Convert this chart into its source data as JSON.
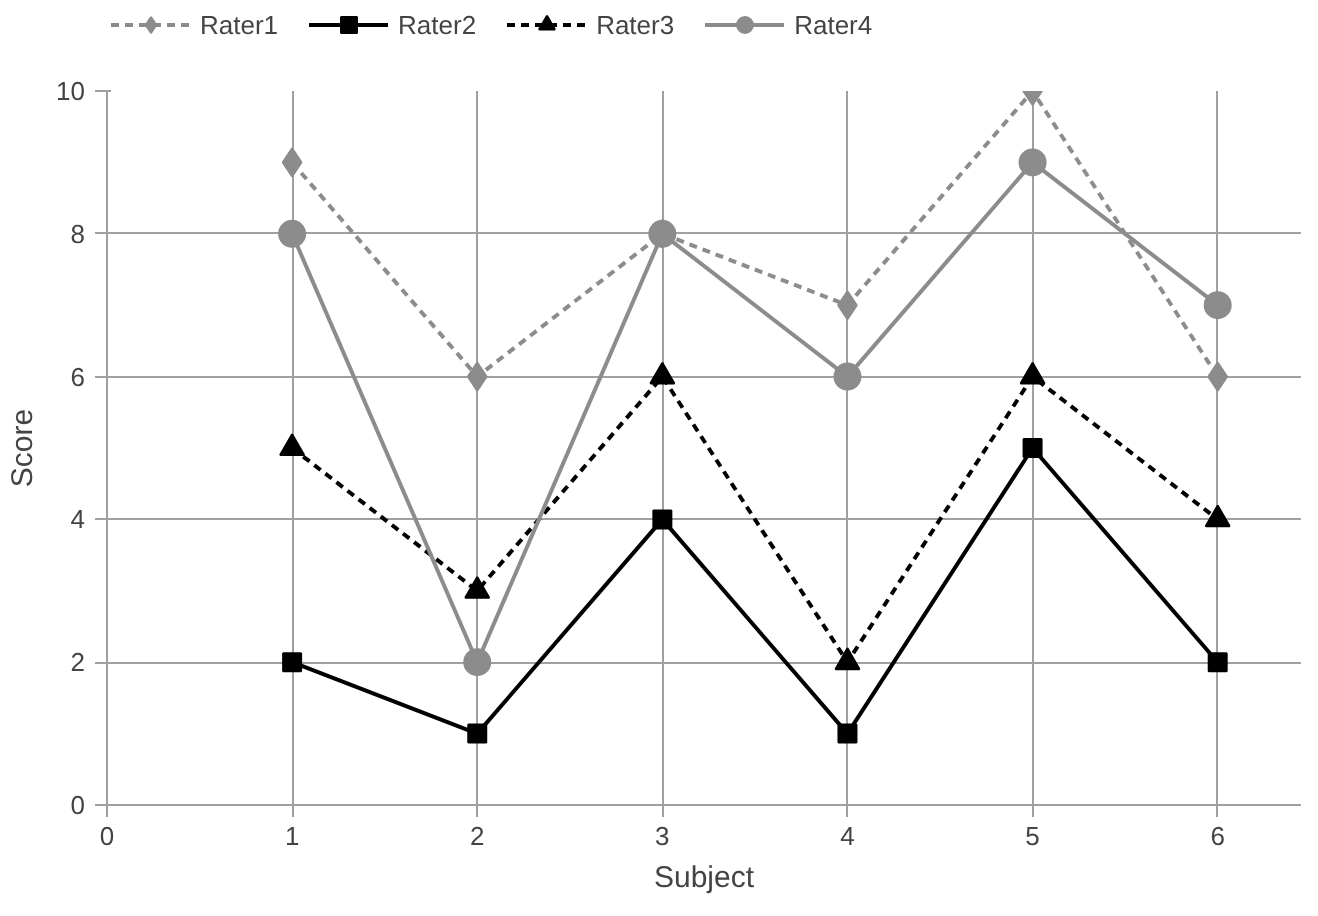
{
  "chart_data": {
    "type": "line",
    "xlabel": "Subject",
    "ylabel": "Score",
    "x": [
      1,
      2,
      3,
      4,
      5,
      6
    ],
    "xlim": [
      0,
      6.45
    ],
    "xticks": [
      0,
      1,
      2,
      3,
      4,
      5,
      6
    ],
    "ylim": [
      0,
      10
    ],
    "yticks": [
      0,
      2,
      4,
      6,
      8,
      10
    ],
    "grid": true,
    "legend": "top",
    "series": [
      {
        "name": "Rater1",
        "color": "#8c8c8c",
        "values": [
          9,
          6,
          8,
          7,
          10,
          6
        ],
        "marker": "diamond",
        "line_style": "dashed"
      },
      {
        "name": "Rater2",
        "color": "#000000",
        "values": [
          2,
          1,
          4,
          1,
          5,
          2
        ],
        "marker": "square",
        "line_style": "solid"
      },
      {
        "name": "Rater3",
        "color": "#000000",
        "values": [
          5,
          3,
          6,
          2,
          6,
          4
        ],
        "marker": "triangle",
        "line_style": "dashed"
      },
      {
        "name": "Rater4",
        "color": "#8c8c8c",
        "values": [
          8,
          2,
          8,
          6,
          9,
          7
        ],
        "marker": "circle",
        "line_style": "solid"
      }
    ]
  }
}
